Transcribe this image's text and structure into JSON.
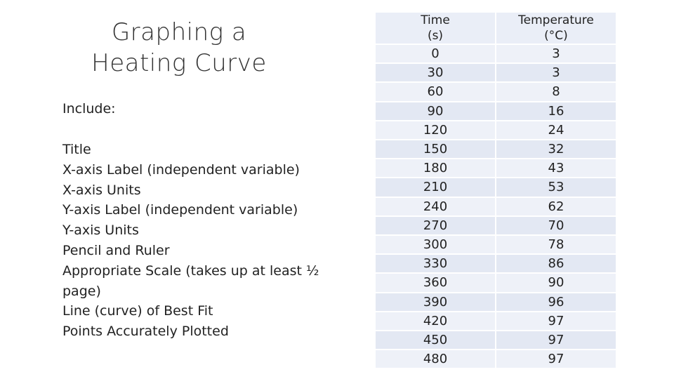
{
  "slide": {
    "title_line1": "Graphing a",
    "title_line2": "Heating Curve",
    "include_label": "Include:",
    "criteria": [
      "Title",
      "X-axis Label (independent variable)",
      "X-axis Units",
      "Y-axis Label (independent variable)",
      "Y-axis Units",
      "Pencil and Ruler",
      "Appropriate Scale (takes up at least ½",
      "page)",
      "Line (curve) of Best Fit",
      "Points Accurately Plotted"
    ]
  },
  "table": {
    "headers": [
      {
        "line1": "Time",
        "line2": "(s)"
      },
      {
        "line1": "Temperature",
        "line2": "(°C)"
      }
    ],
    "rows": [
      [
        "0",
        "3"
      ],
      [
        "30",
        "3"
      ],
      [
        "60",
        "8"
      ],
      [
        "90",
        "16"
      ],
      [
        "120",
        "24"
      ],
      [
        "150",
        "32"
      ],
      [
        "180",
        "43"
      ],
      [
        "210",
        "53"
      ],
      [
        "240",
        "62"
      ],
      [
        "270",
        "70"
      ],
      [
        "300",
        "78"
      ],
      [
        "330",
        "86"
      ],
      [
        "360",
        "90"
      ],
      [
        "390",
        "96"
      ],
      [
        "420",
        "97"
      ],
      [
        "450",
        "97"
      ],
      [
        "480",
        "97"
      ]
    ]
  },
  "colors": {
    "cell_light": "#eef1f8",
    "cell_dark": "#e3e8f3",
    "text": "#222222"
  }
}
